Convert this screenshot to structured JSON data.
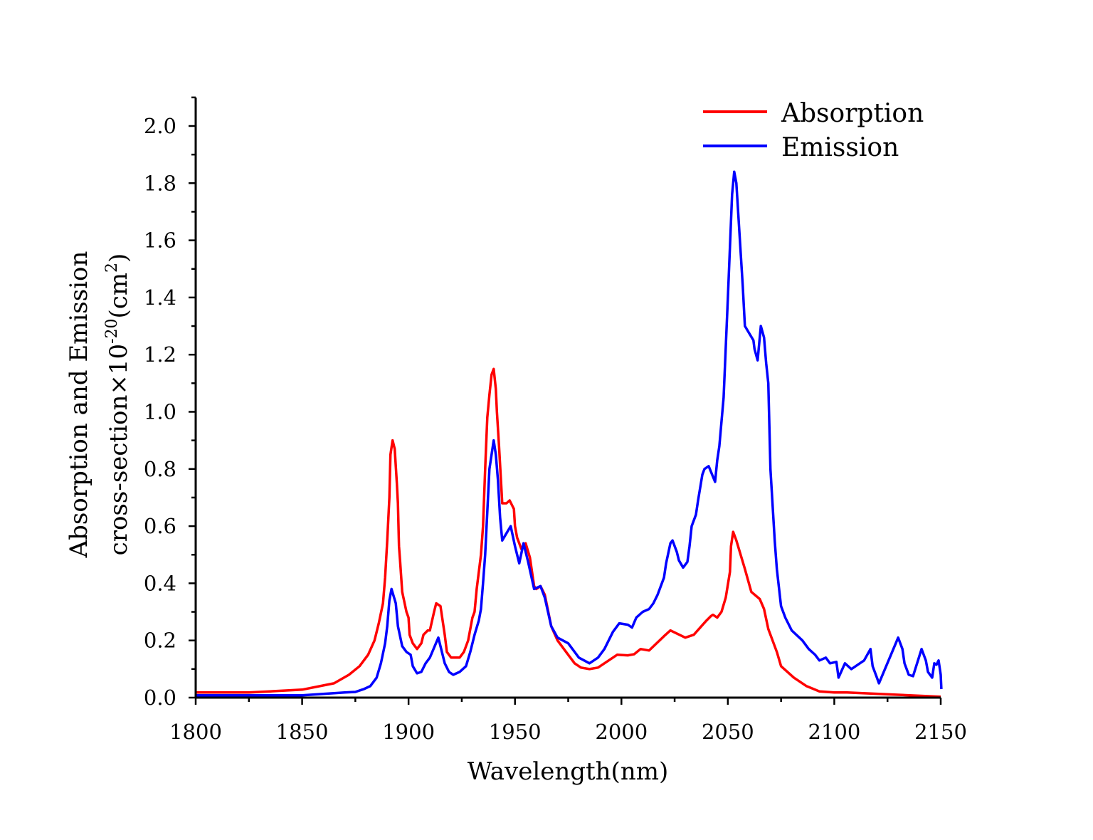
{
  "chart_data": {
    "type": "line",
    "title": "",
    "xlabel": "Wavelength(nm)",
    "ylabel": {
      "line1": "Absorption and Emission",
      "line2_prefix": "cross-section×10",
      "line2_exp": "-20",
      "line2_unit": "(cm",
      "line2_unit_exp": "2",
      "line2_close": ")"
    },
    "xlim": [
      1800,
      2150
    ],
    "ylim": [
      0,
      2.1
    ],
    "xticks": [
      "1800",
      "1850",
      "1900",
      "1950",
      "2000",
      "2050",
      "2100",
      "2150"
    ],
    "yticks": [
      "0.0",
      "0.2",
      "0.4",
      "0.6",
      "0.8",
      "1.0",
      "1.2",
      "1.4",
      "1.6",
      "1.8",
      "2.0"
    ],
    "grid": false,
    "legend": "top-right",
    "series": [
      {
        "name": "Absorption",
        "color": "#ff0000",
        "x": [
          1800,
          1825,
          1850,
          1865,
          1872,
          1877,
          1881,
          1884,
          1886,
          1888,
          1889,
          1890,
          1891,
          1891.5,
          1892.5,
          1893.5,
          1894.5,
          1895,
          1895.5,
          1896,
          1897,
          1899,
          1900,
          1900.5,
          1902,
          1904,
          1906,
          1907,
          1909,
          1910,
          1912,
          1913,
          1915,
          1917,
          1918,
          1920,
          1924,
          1926,
          1928,
          1930,
          1931,
          1932,
          1934,
          1935,
          1936,
          1937,
          1938,
          1939,
          1940,
          1941,
          1941.5,
          1942.5,
          1944,
          1946,
          1947.5,
          1949.5,
          1950,
          1951,
          1953,
          1955,
          1957,
          1959,
          1960,
          1962,
          1964,
          1967,
          1970,
          1975,
          1978,
          1981,
          1985,
          1989,
          1998,
          2003,
          2006,
          2009,
          2013,
          2020,
          2023,
          2030,
          2034,
          2037,
          2040,
          2042,
          2043,
          2045,
          2047,
          2049,
          2051,
          2051.5,
          2052.5,
          2054,
          2056,
          2058,
          2061,
          2065,
          2067,
          2069,
          2073,
          2075,
          2081,
          2087,
          2093,
          2100,
          2106,
          2130,
          2150
        ],
        "y": [
          0.018,
          0.018,
          0.028,
          0.05,
          0.08,
          0.11,
          0.15,
          0.2,
          0.26,
          0.33,
          0.42,
          0.55,
          0.7,
          0.85,
          0.9,
          0.87,
          0.75,
          0.68,
          0.53,
          0.48,
          0.37,
          0.3,
          0.28,
          0.22,
          0.19,
          0.17,
          0.19,
          0.22,
          0.235,
          0.235,
          0.3,
          0.33,
          0.32,
          0.22,
          0.16,
          0.14,
          0.14,
          0.16,
          0.2,
          0.28,
          0.3,
          0.38,
          0.5,
          0.6,
          0.8,
          0.98,
          1.06,
          1.13,
          1.15,
          1.08,
          1.0,
          0.88,
          0.68,
          0.68,
          0.69,
          0.66,
          0.6,
          0.56,
          0.52,
          0.54,
          0.49,
          0.39,
          0.38,
          0.39,
          0.36,
          0.25,
          0.2,
          0.15,
          0.12,
          0.105,
          0.1,
          0.105,
          0.15,
          0.148,
          0.152,
          0.17,
          0.165,
          0.215,
          0.235,
          0.21,
          0.22,
          0.245,
          0.27,
          0.285,
          0.29,
          0.28,
          0.3,
          0.35,
          0.44,
          0.53,
          0.58,
          0.55,
          0.5,
          0.45,
          0.37,
          0.345,
          0.31,
          0.24,
          0.16,
          0.11,
          0.07,
          0.04,
          0.022,
          0.018,
          0.018,
          0.01,
          0.003
        ]
      },
      {
        "name": "Emission",
        "color": "#0000ff",
        "x": [
          1800,
          1850,
          1870,
          1875,
          1879,
          1882,
          1885,
          1887,
          1889,
          1890,
          1891,
          1892,
          1894,
          1895,
          1897,
          1899,
          1901,
          1902,
          1904,
          1906,
          1908,
          1910,
          1914,
          1917,
          1919,
          1921,
          1924,
          1927,
          1929,
          1931,
          1933,
          1934,
          1935,
          1936,
          1937,
          1938,
          1939,
          1940,
          1941,
          1942,
          1943,
          1944,
          1948,
          1950,
          1952,
          1954,
          1956,
          1959,
          1962,
          1964,
          1967,
          1970,
          1975,
          1980,
          1985,
          1989,
          1992,
          1996,
          1999,
          2003,
          2005,
          2007,
          2010,
          2013,
          2015,
          2017,
          2020,
          2021,
          2023,
          2024,
          2026,
          2027,
          2029,
          2031,
          2032,
          2033,
          2035,
          2036,
          2038,
          2039,
          2041,
          2044,
          2045,
          2046,
          2048,
          2050,
          2052,
          2053,
          2054,
          2057,
          2058,
          2062,
          2062.5,
          2064,
          2065.5,
          2067,
          2068,
          2069,
          2070,
          2072,
          2073,
          2075,
          2077,
          2080,
          2085,
          2088,
          2091,
          2093,
          2096,
          2098,
          2101,
          2102,
          2105,
          2108,
          2114,
          2117,
          2118,
          2120,
          2121,
          2130,
          2132,
          2133,
          2135,
          2137,
          2141,
          2143,
          2144,
          2146,
          2147,
          2148,
          2149,
          2150,
          2150.3
        ],
        "y": [
          0.008,
          0.008,
          0.018,
          0.02,
          0.03,
          0.04,
          0.07,
          0.12,
          0.19,
          0.25,
          0.34,
          0.38,
          0.33,
          0.25,
          0.18,
          0.16,
          0.15,
          0.11,
          0.085,
          0.09,
          0.12,
          0.14,
          0.21,
          0.12,
          0.09,
          0.08,
          0.09,
          0.11,
          0.16,
          0.22,
          0.27,
          0.31,
          0.4,
          0.5,
          0.65,
          0.8,
          0.85,
          0.9,
          0.85,
          0.76,
          0.63,
          0.55,
          0.6,
          0.53,
          0.47,
          0.54,
          0.48,
          0.38,
          0.39,
          0.35,
          0.25,
          0.21,
          0.19,
          0.14,
          0.12,
          0.14,
          0.17,
          0.23,
          0.26,
          0.255,
          0.245,
          0.28,
          0.3,
          0.31,
          0.33,
          0.36,
          0.42,
          0.47,
          0.54,
          0.55,
          0.51,
          0.48,
          0.455,
          0.475,
          0.53,
          0.6,
          0.64,
          0.69,
          0.78,
          0.8,
          0.81,
          0.755,
          0.83,
          0.88,
          1.05,
          1.4,
          1.76,
          1.84,
          1.8,
          1.44,
          1.3,
          1.25,
          1.22,
          1.18,
          1.3,
          1.26,
          1.17,
          1.1,
          0.8,
          0.55,
          0.45,
          0.32,
          0.28,
          0.235,
          0.2,
          0.17,
          0.15,
          0.13,
          0.14,
          0.12,
          0.125,
          0.07,
          0.12,
          0.1,
          0.13,
          0.17,
          0.11,
          0.07,
          0.05,
          0.21,
          0.17,
          0.12,
          0.08,
          0.075,
          0.17,
          0.13,
          0.09,
          0.07,
          0.12,
          0.115,
          0.13,
          0.08,
          0.03
        ]
      }
    ]
  }
}
